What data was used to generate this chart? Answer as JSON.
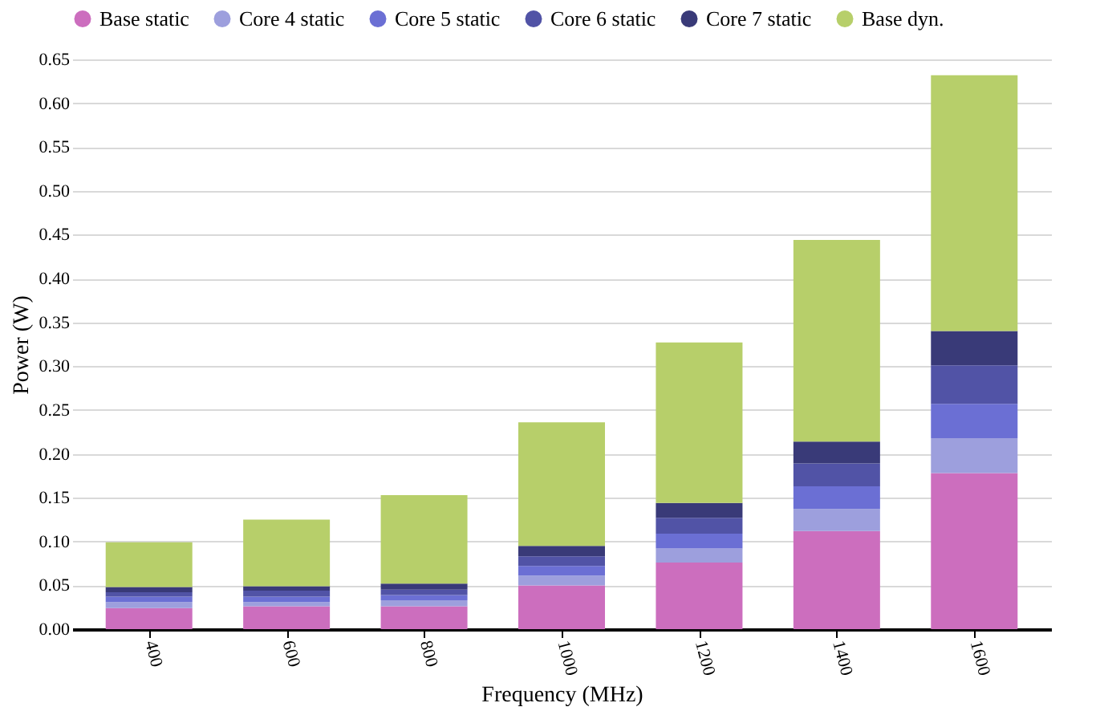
{
  "chart_data": {
    "type": "bar",
    "stacked": true,
    "xlabel": "Frequency (MHz)",
    "ylabel": "Power (W)",
    "categories": [
      "400",
      "600",
      "800",
      "1000",
      "1200",
      "1400",
      "1600"
    ],
    "series": [
      {
        "name": "Base static",
        "color": "#cc6ebe",
        "values": [
          0.024,
          0.026,
          0.026,
          0.05,
          0.076,
          0.112,
          0.178
        ]
      },
      {
        "name": "Core 4 static",
        "color": "#9d9fdd",
        "values": [
          0.007,
          0.005,
          0.007,
          0.011,
          0.016,
          0.025,
          0.04
        ]
      },
      {
        "name": "Core 5 static",
        "color": "#6b6fd4",
        "values": [
          0.006,
          0.006,
          0.006,
          0.011,
          0.017,
          0.026,
          0.039
        ]
      },
      {
        "name": "Core 6 static",
        "color": "#5153a6",
        "values": [
          0.005,
          0.007,
          0.006,
          0.011,
          0.018,
          0.026,
          0.044
        ]
      },
      {
        "name": "Core 7 static",
        "color": "#393a78",
        "values": [
          0.006,
          0.005,
          0.007,
          0.012,
          0.017,
          0.025,
          0.039
        ]
      },
      {
        "name": "Base dyn.",
        "color": "#b7cf6a",
        "values": [
          0.051,
          0.076,
          0.101,
          0.141,
          0.183,
          0.23,
          0.292
        ]
      }
    ],
    "ylim": [
      0,
      0.65
    ],
    "yticks": [
      {
        "value": 0,
        "label": "0.00"
      },
      {
        "value": 0.05,
        "label": "0.05"
      },
      {
        "value": 0.1,
        "label": "0.10"
      },
      {
        "value": 0.15,
        "label": "0.15"
      },
      {
        "value": 0.2,
        "label": "0.20"
      },
      {
        "value": 0.25,
        "label": "0.25"
      },
      {
        "value": 0.3,
        "label": "0.30"
      },
      {
        "value": 0.35,
        "label": "0.35"
      },
      {
        "value": 0.4,
        "label": "0.40"
      },
      {
        "value": 0.45,
        "label": "0.45"
      },
      {
        "value": 0.5,
        "label": "0.50"
      },
      {
        "value": 0.55,
        "label": "0.55"
      },
      {
        "value": 0.6,
        "label": "0.60"
      },
      {
        "value": 0.65,
        "label": "0.65"
      }
    ],
    "grid": "y",
    "legend": "top"
  }
}
